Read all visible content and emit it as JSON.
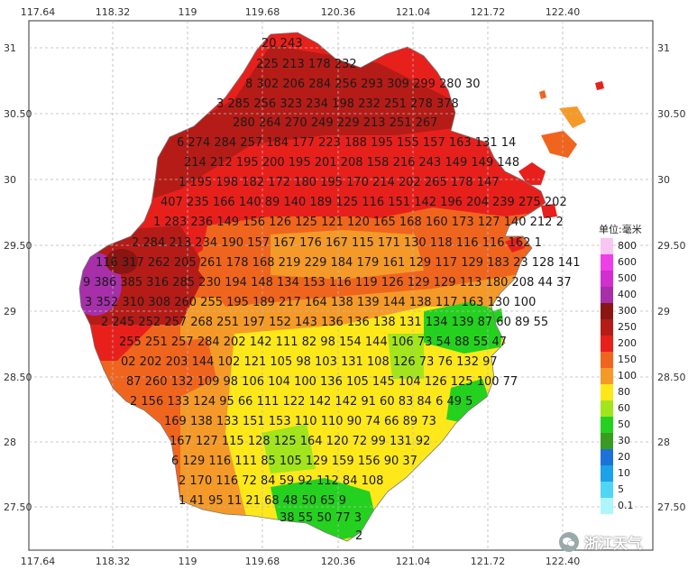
{
  "x_ticks": [
    "117.64",
    "118.32",
    "119",
    "119.68",
    "120.36",
    "121.04",
    "121.72",
    "122.40"
  ],
  "y_ticks": [
    "31",
    "30.50",
    "30",
    "29.50",
    "29",
    "28.50",
    "28",
    "27.50"
  ],
  "legend": {
    "title": "单位:毫米",
    "levels": [
      {
        "label": "800",
        "color": "#f7c6f2"
      },
      {
        "label": "600",
        "color": "#ef3fe9"
      },
      {
        "label": "500",
        "color": "#d12fd0"
      },
      {
        "label": "400",
        "color": "#a72faa"
      },
      {
        "label": "300",
        "color": "#8a1512"
      },
      {
        "label": "250",
        "color": "#b51c17"
      },
      {
        "label": "200",
        "color": "#e8201c"
      },
      {
        "label": "150",
        "color": "#f0651d"
      },
      {
        "label": "100",
        "color": "#f59a28"
      },
      {
        "label": "80",
        "color": "#ffe81a"
      },
      {
        "label": "60",
        "color": "#a2e51d"
      },
      {
        "label": "50",
        "color": "#25d11f"
      },
      {
        "label": "30",
        "color": "#3a9b23"
      },
      {
        "label": "20",
        "color": "#1d72d9"
      },
      {
        "label": "10",
        "color": "#1aa3ea"
      },
      {
        "label": "5",
        "color": "#4fd6f5"
      },
      {
        "label": "0.1",
        "color": "#aef6fb"
      }
    ]
  },
  "values": [
    "20 243",
    "225 213 178 232",
    "8 302 206 284 256 293 309 299 280 30",
    "3 285 256 323 234 198 232 251 278 378",
    "280 264 270 249 229 213 251 267",
    "6 274 284 257 184 177 223 188 195 155 157 163 131 14",
    "214 212 195 200 195 201 208 158 216 243 149 149 148",
    "1 195 198 182 172 180 195 170 214 202 265 178 147",
    "407 235 166 140 89 140 189 125 116 151 142 196 204 239 275 202",
    "1 283 236 149 156 126 125 121 120 165 168 160 173 127 140 212 2",
    "2 284 213 234 190 157 167 176 167 115 171 130 118 116 116 162 1",
    "116 317 262 205 261 178 168 219 229 184 179 161 129 117 129 183 23 128 141",
    "9 386 385 316 285 230 194 148 134 153 116 119 126 129 129 113 180 208 44 37",
    "3 352 310 308 260 255 195 189 217 164 138 139 144 138 117 163 130 100",
    "2 245 252 257 268 251 197 152 143 136 136 138 131 134 139 87 60 89 55",
    "255 251 257 284 202 142 111 82 98 154 144 106 73 54 88 55 47",
    "02 202 203 144 102 121 105 98 103 131 108 126 73 76 132 97",
    "87 260 132 109 98 106 104 100 136 105 145 104 126 125 100 77",
    "2 156 133 124 95 66 111 122 142 142 91 60 83 84 6 49 5",
    "169 138 133 151 153 110 110 90 74 66 89 73",
    "167 127 115 128 125 164 120 72 99 131 92",
    "6 129 116 111 85 105 129 159 156 90 37",
    "2 170 116 72 84 59 92 112 84 108",
    "1 41 95 11 21 68 48 50 65 9",
    "38 55 50 77 3",
    "2"
  ],
  "watermark": "浙江天气"
}
